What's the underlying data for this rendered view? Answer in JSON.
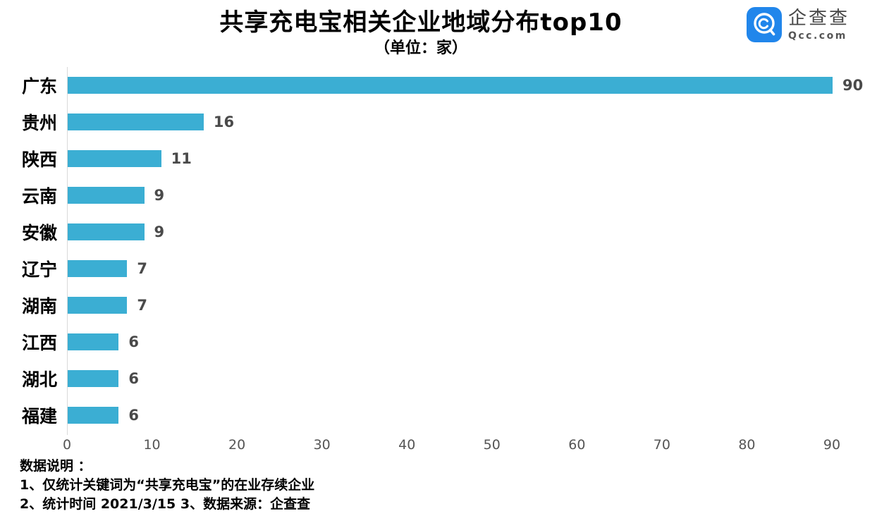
{
  "header": {
    "title": "共享充电宝相关企业地域分布top10",
    "subtitle": "（单位：家）"
  },
  "logo": {
    "name_cn": "企查查",
    "name_en": "Qcc.com",
    "brand_color": "#2186EB"
  },
  "chart_data": {
    "type": "bar",
    "orientation": "horizontal",
    "title": "共享充电宝相关企业地域分布top10",
    "subtitle": "（单位：家）",
    "categories": [
      "广东",
      "贵州",
      "陕西",
      "云南",
      "安徽",
      "辽宁",
      "湖南",
      "江西",
      "湖北",
      "福建"
    ],
    "values": [
      90,
      16,
      11,
      9,
      9,
      7,
      7,
      6,
      6,
      6
    ],
    "xlabel": "",
    "ylabel": "",
    "xlim": [
      0,
      90
    ],
    "xticks": [
      0,
      10,
      20,
      30,
      40,
      50,
      60,
      70,
      80,
      90
    ],
    "bar_color": "#3BAED3",
    "grid": false,
    "value_labels": true,
    "legend": "none"
  },
  "footer": {
    "lines": [
      "数据说明 ：",
      "1、仅统计关键词为“共享充电宝”的在业存续企业",
      "2、统计时间 2021/3/15   3、数据来源：企查查"
    ]
  }
}
